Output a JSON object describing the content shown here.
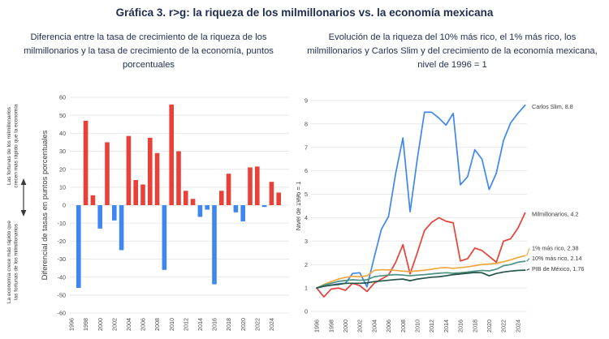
{
  "title": "Gráfica 3. r>g: la riqueza de los milmillonarios vs. la economía mexicana",
  "colors": {
    "title_text": "#1f2d50",
    "grid": "#e8e8e8",
    "tick_text": "#4a4a4a"
  },
  "chart_data": [
    {
      "type": "bar",
      "title": "Diferencia entre la tasa de crecimiento de la riqueza de los milmillonarios y la tasa de crecimiento de la economía, puntos porcentuales",
      "ylabel": "Diferencial de tasas en puntos porcentuales",
      "ylim": [
        -60,
        60
      ],
      "ytick_step": 10,
      "grid": true,
      "annotation_top": [
        "Las fortunas de los milmillonarios",
        "crecen más rápido que la economía"
      ],
      "annotation_bottom": [
        "La economía crece más rápido que",
        "las fortunas de los milmillonarios"
      ],
      "positive_color": "#e94038",
      "negative_color": "#3e86f0",
      "years": [
        1997,
        1998,
        1999,
        2000,
        2001,
        2002,
        2003,
        2004,
        2005,
        2006,
        2007,
        2008,
        2009,
        2010,
        2011,
        2012,
        2013,
        2014,
        2015,
        2016,
        2017,
        2018,
        2019,
        2020,
        2021,
        2022,
        2023,
        2024,
        2025
      ],
      "values": [
        -46,
        47,
        5.5,
        -13,
        35,
        -8.5,
        -25,
        38.5,
        14,
        11.5,
        37.5,
        29,
        -36,
        56,
        30,
        8,
        3.5,
        -6.5,
        -2.5,
        -44,
        8,
        17.5,
        -4,
        -9,
        21,
        21.5,
        -1,
        13,
        7
      ],
      "xticks": [
        1996,
        1998,
        2000,
        2002,
        2004,
        2006,
        2008,
        2010,
        2012,
        2014,
        2016,
        2018,
        2020,
        2022,
        2024
      ]
    },
    {
      "type": "line",
      "title": "Evolución de la riqueza del 10% más rico, el 1% más rico, los milmillonarios y Carlos Slim y del crecimiento de la economía mexicana, nivel de 1996 = 1",
      "ylabel": "Nivel de 1996 = 1",
      "ylim": [
        0,
        9
      ],
      "ytick_step": 1,
      "grid": true,
      "legend_position": "right-end-labels",
      "years": [
        1996,
        1997,
        1998,
        1999,
        2000,
        2001,
        2002,
        2003,
        2004,
        2005,
        2006,
        2007,
        2008,
        2009,
        2010,
        2011,
        2012,
        2013,
        2014,
        2015,
        2016,
        2017,
        2018,
        2019,
        2020,
        2021,
        2022,
        2023,
        2024,
        2025
      ],
      "xticks": [
        1996,
        1998,
        2000,
        2002,
        2004,
        2006,
        2008,
        2010,
        2012,
        2014,
        2016,
        2018,
        2020,
        2022,
        2024
      ],
      "series": [
        {
          "name": "Carlos Slim",
          "end_label": "Carlos Slim, 8.8",
          "end_value": 8.8,
          "color": "#3e86f0",
          "values": [
            1.0,
            1.08,
            1.12,
            1.18,
            1.2,
            1.62,
            1.65,
            1.05,
            2.3,
            3.5,
            4.05,
            5.9,
            7.4,
            4.25,
            6.5,
            8.5,
            8.5,
            8.25,
            7.95,
            8.45,
            5.4,
            5.75,
            6.9,
            6.5,
            5.2,
            5.9,
            7.3,
            8.05,
            8.45,
            8.8
          ]
        },
        {
          "name": "Milmillonarios",
          "end_label": "Milmillonarios, 4.2",
          "end_value": 4.2,
          "color": "#e94038",
          "values": [
            1.0,
            0.62,
            0.95,
            1.0,
            0.9,
            1.2,
            1.1,
            0.85,
            1.2,
            1.38,
            1.55,
            2.1,
            2.85,
            1.6,
            2.5,
            3.45,
            3.8,
            4.0,
            3.85,
            3.78,
            2.15,
            2.25,
            2.7,
            2.6,
            2.35,
            2.1,
            3.0,
            3.1,
            3.55,
            4.2
          ]
        },
        {
          "name": "1% más rico",
          "end_label": "1% más rico, 2.38",
          "end_value": 2.38,
          "color": "#f2a73d",
          "values": [
            1.0,
            1.15,
            1.27,
            1.38,
            1.45,
            1.5,
            1.48,
            1.52,
            1.75,
            1.78,
            1.77,
            1.75,
            1.72,
            1.7,
            1.73,
            1.76,
            1.8,
            1.85,
            1.87,
            1.84,
            1.87,
            1.9,
            1.95,
            2.0,
            2.02,
            2.05,
            2.12,
            2.2,
            2.3,
            2.38
          ]
        },
        {
          "name": "10% más rico",
          "end_label": "10% más rico, 2.14",
          "end_value": 2.14,
          "color": "#4d9383",
          "values": [
            1.0,
            1.12,
            1.2,
            1.28,
            1.32,
            1.35,
            1.33,
            1.35,
            1.48,
            1.52,
            1.55,
            1.57,
            1.55,
            1.52,
            1.55,
            1.57,
            1.6,
            1.63,
            1.65,
            1.63,
            1.65,
            1.68,
            1.72,
            1.75,
            1.73,
            1.8,
            1.95,
            2.0,
            2.1,
            2.14
          ]
        },
        {
          "name": "PIB de México",
          "end_label": "PIB de México, 1.76",
          "end_value": 1.76,
          "color": "#24544a",
          "values": [
            1.0,
            1.07,
            1.12,
            1.15,
            1.2,
            1.2,
            1.2,
            1.22,
            1.27,
            1.3,
            1.33,
            1.36,
            1.38,
            1.31,
            1.38,
            1.42,
            1.46,
            1.48,
            1.52,
            1.57,
            1.6,
            1.63,
            1.66,
            1.65,
            1.52,
            1.62,
            1.68,
            1.72,
            1.75,
            1.76
          ]
        }
      ]
    }
  ]
}
